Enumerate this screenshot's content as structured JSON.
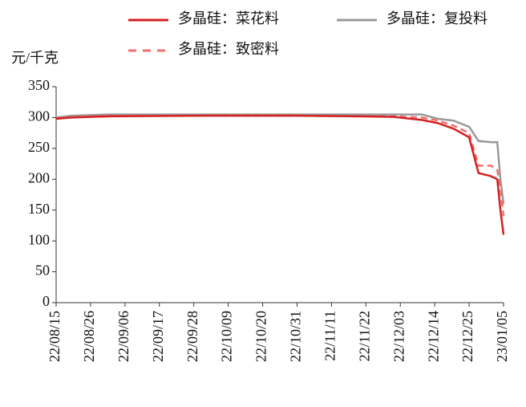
{
  "chart_data": {
    "type": "line",
    "y_label": "元/千克",
    "x": [
      "22/08/15",
      "22/08/20",
      "22/09/01",
      "22/10/01",
      "22/11/01",
      "22/11/20",
      "22/12/01",
      "22/12/10",
      "22/12/15",
      "22/12/20",
      "22/12/25",
      "22/12/28",
      "23/01/01",
      "23/01/03",
      "23/01/04",
      "23/01/05"
    ],
    "series": [
      {
        "name": "多晶硅：菜花料",
        "color": "#d42020",
        "dashed": false,
        "values": [
          298,
          300,
          302,
          303,
          303,
          302,
          301,
          296,
          291,
          282,
          268,
          210,
          205,
          200,
          150,
          110
        ]
      },
      {
        "name": "多晶硅：复投料",
        "color": "#999999",
        "dashed": false,
        "values": [
          300,
          303,
          305,
          305,
          305,
          305,
          305,
          305,
          298,
          295,
          285,
          262,
          260,
          260,
          200,
          160
        ]
      },
      {
        "name": "多晶硅：致密料",
        "color": "#f26d6d",
        "dashed": true,
        "values": [
          299,
          301,
          303,
          303,
          303,
          302,
          302,
          300,
          295,
          287,
          275,
          222,
          222,
          215,
          185,
          140
        ]
      }
    ],
    "ylim": [
      0,
      350
    ],
    "yticks": [
      0,
      50,
      100,
      150,
      200,
      250,
      300,
      350
    ],
    "xlim": [
      "22/08/15",
      "23/01/05"
    ],
    "xticks": [
      "22/08/15",
      "22/08/26",
      "22/09/06",
      "22/09/17",
      "22/09/28",
      "22/10/09",
      "22/10/20",
      "22/10/31",
      "22/11/11",
      "22/11/22",
      "22/12/03",
      "22/12/14",
      "22/12/25",
      "23/01/05"
    ]
  }
}
